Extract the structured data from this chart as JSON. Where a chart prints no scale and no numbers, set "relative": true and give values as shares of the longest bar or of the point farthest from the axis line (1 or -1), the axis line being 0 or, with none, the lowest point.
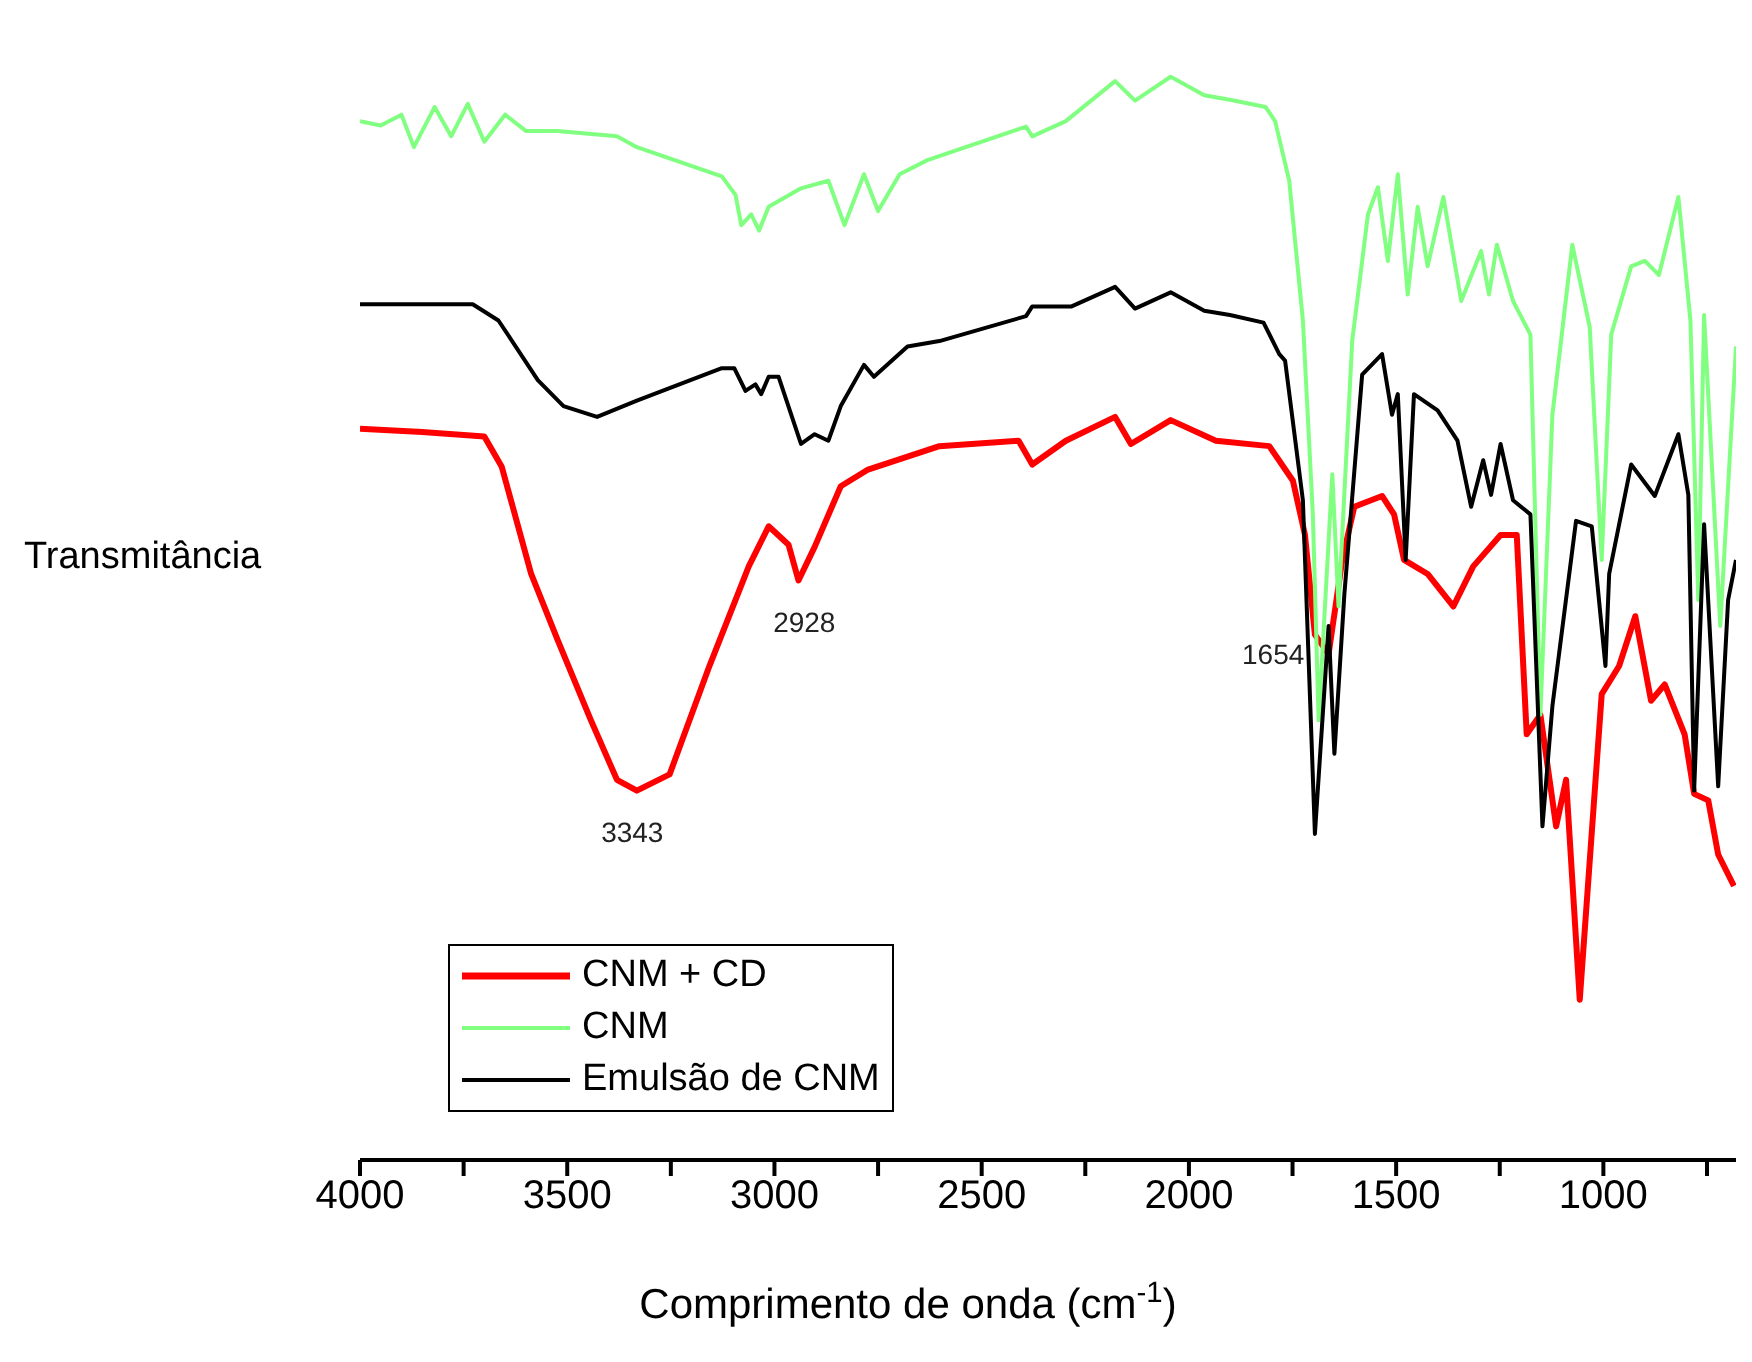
{
  "chart_data": {
    "type": "line",
    "relative": true,
    "xlabel": "Comprimento de onda (cm$^{-1}$)",
    "ylabel": "Transmitância",
    "xlim": [
      4000,
      680
    ],
    "xticks": [
      4000,
      {
        "value": 3750,
        "label": null
      },
      3500,
      {
        "value": 3250,
        "label": null
      },
      3000,
      {
        "value": 2750,
        "label": null
      },
      2500,
      {
        "value": 2250,
        "label": null
      },
      2000,
      {
        "value": 1750,
        "label": null
      },
      1500,
      {
        "value": 1250,
        "label": null
      },
      1000,
      {
        "value": 750,
        "label": null
      }
    ],
    "legend": "bottom left",
    "grid": false,
    "marker": "none",
    "line_style": "solid",
    "annotations": [
      {
        "text": "3343",
        "x": 3343,
        "y": 0.341
      },
      {
        "text": "2928",
        "x": 2928,
        "y": 0.535
      },
      {
        "text": "1654",
        "x": 1654,
        "y": 0.467
      }
    ],
    "series": [
      {
        "name": "CNM + CD",
        "color": "#ff0000",
        "x": [
          4000,
          3850,
          3700,
          3658,
          3587,
          3523,
          3443,
          3380,
          3332,
          3253,
          3157,
          3062,
          3014,
          2966,
          2942,
          2903,
          2840,
          2776,
          2602,
          2411,
          2378,
          2297,
          2178,
          2140,
          2044,
          1935,
          1806,
          1749,
          1720,
          1696,
          1663,
          1630,
          1601,
          1534,
          1505,
          1481,
          1424,
          1362,
          1314,
          1248,
          1209,
          1185,
          1152,
          1114,
          1090,
          1057,
          1004,
          962,
          923,
          885,
          852,
          804,
          781,
          747,
          723,
          685
        ],
        "values": [
          0.675,
          0.672,
          0.668,
          0.64,
          0.541,
          0.48,
          0.406,
          0.351,
          0.341,
          0.356,
          0.456,
          0.548,
          0.585,
          0.568,
          0.535,
          0.566,
          0.622,
          0.637,
          0.659,
          0.664,
          0.642,
          0.664,
          0.686,
          0.661,
          0.683,
          0.664,
          0.659,
          0.627,
          0.577,
          0.485,
          0.467,
          0.554,
          0.603,
          0.613,
          0.596,
          0.554,
          0.541,
          0.511,
          0.548,
          0.577,
          0.577,
          0.393,
          0.411,
          0.308,
          0.351,
          0.148,
          0.43,
          0.456,
          0.502,
          0.424,
          0.439,
          0.393,
          0.338,
          0.332,
          0.282,
          0.253
        ]
      },
      {
        "name": "CNM",
        "color": "#80ff80",
        "x": [
          4000,
          3950,
          3900,
          3870,
          3820,
          3780,
          3740,
          3700,
          3650,
          3600,
          3523,
          3380,
          3332,
          3127,
          3094,
          3080,
          3056,
          3037,
          3014,
          2936,
          2870,
          2831,
          2784,
          2750,
          2698,
          2631,
          2393,
          2378,
          2297,
          2178,
          2130,
          2044,
          1963,
          1892,
          1815,
          1792,
          1758,
          1725,
          1701,
          1687,
          1654,
          1639,
          1606,
          1568,
          1544,
          1520,
          1496,
          1472,
          1448,
          1424,
          1386,
          1343,
          1295,
          1276,
          1257,
          1218,
          1176,
          1152,
          1123,
          1075,
          1033,
          1004,
          981,
          933,
          900,
          866,
          819,
          790,
          771,
          757,
          718,
          680
        ],
        "values": [
          0.959,
          0.955,
          0.965,
          0.935,
          0.972,
          0.945,
          0.975,
          0.94,
          0.965,
          0.95,
          0.95,
          0.945,
          0.935,
          0.908,
          0.891,
          0.863,
          0.873,
          0.858,
          0.88,
          0.897,
          0.904,
          0.863,
          0.91,
          0.876,
          0.91,
          0.923,
          0.954,
          0.945,
          0.959,
          0.996,
          0.978,
          1.0,
          0.983,
          0.978,
          0.972,
          0.959,
          0.904,
          0.775,
          0.596,
          0.406,
          0.633,
          0.511,
          0.756,
          0.873,
          0.898,
          0.83,
          0.91,
          0.799,
          0.88,
          0.825,
          0.889,
          0.793,
          0.839,
          0.799,
          0.845,
          0.793,
          0.762,
          0.411,
          0.688,
          0.845,
          0.769,
          0.554,
          0.762,
          0.825,
          0.83,
          0.817,
          0.889,
          0.775,
          0.517,
          0.78,
          0.493,
          0.751
        ]
      },
      {
        "name": "Emulsão de CNM",
        "color": "#000000",
        "x": [
          4000,
          3728,
          3666,
          3571,
          3509,
          3428,
          3332,
          3127,
          3097,
          3070,
          3046,
          3032,
          3014,
          2990,
          2936,
          2903,
          2870,
          2840,
          2784,
          2760,
          2679,
          2602,
          2393,
          2378,
          2283,
          2178,
          2130,
          2044,
          1963,
          1901,
          1820,
          1782,
          1768,
          1725,
          1696,
          1663,
          1649,
          1625,
          1582,
          1534,
          1510,
          1496,
          1477,
          1457,
          1400,
          1352,
          1319,
          1290,
          1271,
          1248,
          1218,
          1176,
          1147,
          1123,
          1066,
          1028,
          995,
          986,
          933,
          876,
          819,
          795,
          781,
          757,
          723,
          699,
          680
        ],
        "values": [
          0.79,
          0.79,
          0.775,
          0.72,
          0.696,
          0.686,
          0.701,
          0.731,
          0.731,
          0.71,
          0.716,
          0.707,
          0.723,
          0.723,
          0.661,
          0.67,
          0.664,
          0.696,
          0.734,
          0.723,
          0.751,
          0.756,
          0.779,
          0.788,
          0.788,
          0.806,
          0.786,
          0.801,
          0.784,
          0.78,
          0.773,
          0.744,
          0.738,
          0.609,
          0.301,
          0.493,
          0.375,
          0.522,
          0.725,
          0.744,
          0.688,
          0.707,
          0.554,
          0.707,
          0.692,
          0.664,
          0.603,
          0.646,
          0.614,
          0.661,
          0.609,
          0.596,
          0.308,
          0.419,
          0.59,
          0.585,
          0.456,
          0.541,
          0.642,
          0.613,
          0.67,
          0.614,
          0.341,
          0.587,
          0.345,
          0.517,
          0.554
        ]
      }
    ]
  }
}
